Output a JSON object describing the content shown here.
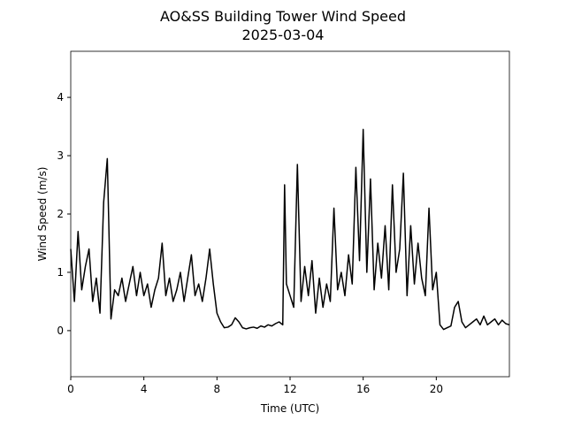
{
  "chart_data": {
    "type": "line",
    "title": "AO&SS Building Tower Wind Speed",
    "subtitle": "2025-03-04",
    "xlabel": "Time (UTC)",
    "ylabel": "Wind Speed (m/s)",
    "xlim": [
      0,
      24
    ],
    "ylim": [
      -0.79,
      4.79
    ],
    "xticks": [
      0,
      4,
      8,
      12,
      16,
      20
    ],
    "yticks": [
      0,
      1,
      2,
      3,
      4
    ],
    "x": [
      0.0,
      0.2,
      0.4,
      0.6,
      0.8,
      1.0,
      1.2,
      1.4,
      1.6,
      1.8,
      2.0,
      2.2,
      2.4,
      2.6,
      2.8,
      3.0,
      3.2,
      3.4,
      3.6,
      3.8,
      4.0,
      4.2,
      4.4,
      4.6,
      4.8,
      5.0,
      5.2,
      5.4,
      5.6,
      5.8,
      6.0,
      6.2,
      6.4,
      6.6,
      6.8,
      7.0,
      7.2,
      7.4,
      7.6,
      7.8,
      8.0,
      8.2,
      8.4,
      8.6,
      8.8,
      9.0,
      9.2,
      9.4,
      9.6,
      9.8,
      10.0,
      10.2,
      10.4,
      10.6,
      10.8,
      11.0,
      11.2,
      11.4,
      11.6,
      11.7,
      11.8,
      12.0,
      12.2,
      12.4,
      12.6,
      12.8,
      13.0,
      13.2,
      13.4,
      13.6,
      13.8,
      14.0,
      14.2,
      14.4,
      14.6,
      14.8,
      15.0,
      15.2,
      15.4,
      15.6,
      15.8,
      16.0,
      16.2,
      16.4,
      16.6,
      16.8,
      17.0,
      17.2,
      17.4,
      17.6,
      17.8,
      18.0,
      18.2,
      18.4,
      18.6,
      18.8,
      19.0,
      19.2,
      19.4,
      19.6,
      19.8,
      20.0,
      20.2,
      20.4,
      20.6,
      20.8,
      21.0,
      21.2,
      21.4,
      21.6,
      21.8,
      22.0,
      22.2,
      22.4,
      22.6,
      22.8,
      23.0,
      23.2,
      23.4,
      23.6,
      23.8,
      24.0
    ],
    "series": [
      {
        "name": "Wind Speed",
        "color": "#000000",
        "values": [
          1.4,
          0.5,
          1.7,
          0.7,
          1.1,
          1.4,
          0.5,
          0.9,
          0.3,
          2.2,
          2.95,
          0.2,
          0.7,
          0.6,
          0.9,
          0.5,
          0.8,
          1.1,
          0.6,
          1.0,
          0.6,
          0.8,
          0.4,
          0.7,
          0.9,
          1.5,
          0.6,
          0.9,
          0.5,
          0.7,
          1.0,
          0.5,
          0.9,
          1.3,
          0.6,
          0.8,
          0.5,
          0.9,
          1.4,
          0.8,
          0.3,
          0.15,
          0.05,
          0.06,
          0.1,
          0.22,
          0.15,
          0.05,
          0.03,
          0.05,
          0.06,
          0.04,
          0.08,
          0.06,
          0.1,
          0.08,
          0.12,
          0.15,
          0.1,
          2.5,
          0.8,
          0.6,
          0.4,
          2.85,
          0.5,
          1.1,
          0.6,
          1.2,
          0.3,
          0.9,
          0.4,
          0.8,
          0.5,
          2.1,
          0.7,
          1.0,
          0.6,
          1.3,
          0.8,
          2.8,
          1.2,
          3.45,
          1.0,
          2.6,
          0.7,
          1.5,
          0.9,
          1.8,
          0.7,
          2.5,
          1.0,
          1.4,
          2.7,
          0.6,
          1.8,
          0.8,
          1.5,
          0.9,
          0.6,
          2.1,
          0.7,
          1.0,
          0.1,
          0.02,
          0.05,
          0.08,
          0.4,
          0.5,
          0.15,
          0.05,
          0.1,
          0.15,
          0.2,
          0.1,
          0.25,
          0.1,
          0.15,
          0.2,
          0.1,
          0.18,
          0.12,
          0.1
        ]
      }
    ]
  }
}
